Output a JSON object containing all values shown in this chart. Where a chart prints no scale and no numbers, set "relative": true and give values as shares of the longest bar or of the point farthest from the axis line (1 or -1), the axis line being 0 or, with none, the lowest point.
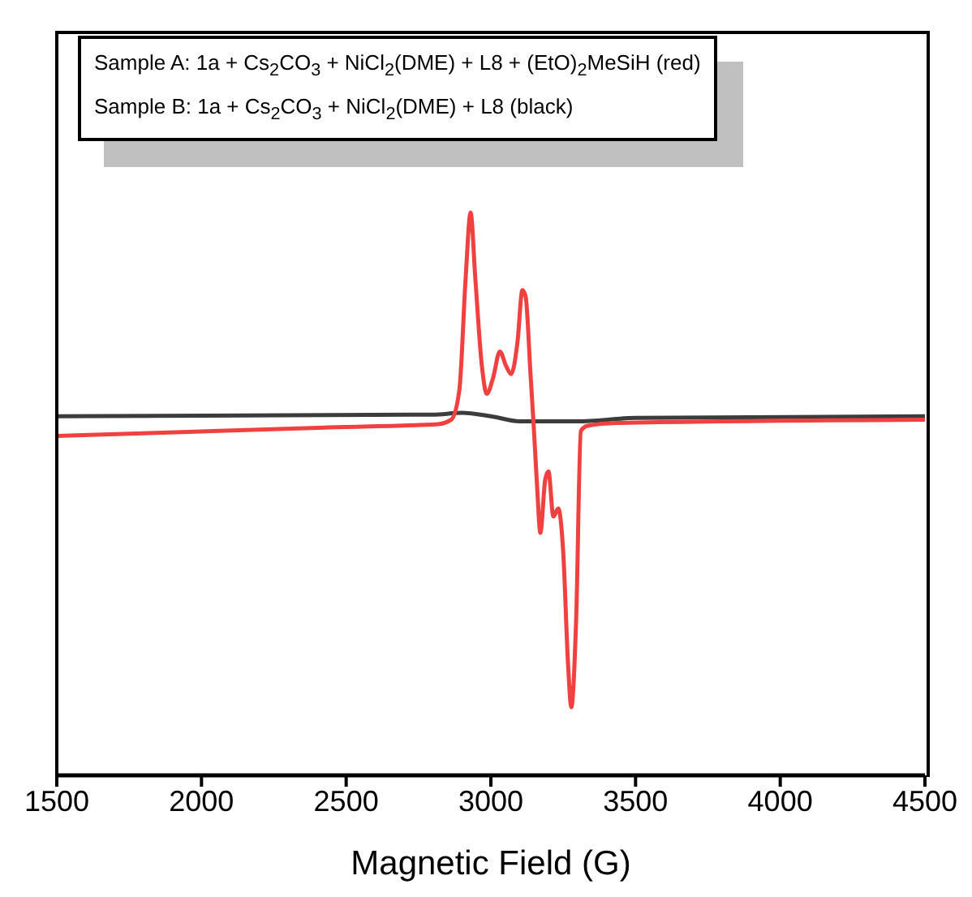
{
  "chart_data": {
    "type": "line",
    "xlabel": "Magnetic Field (G)",
    "relative": true,
    "xlim": [
      1500,
      4500
    ],
    "xticks": [
      1500,
      2000,
      2500,
      3000,
      3500,
      4000,
      4500
    ],
    "grid": false,
    "legend": false,
    "marker": "none",
    "line_style": "solid",
    "annotations": [
      "Sample A: 1a + Cs$_{2}$CO$_{3}$ + NiCl$_{2}$(DME) + L8 + (EtO)$_{2}$MeSiH (red)",
      "Sample B: 1a + Cs$_{2}$CO$_{3}$ + NiCl$_{2}$(DME) + L8 (black)"
    ],
    "series": [
      {
        "color": "#3c3c3c",
        "x": [
          1500,
          2800,
          2900,
          3000,
          3100,
          3300,
          3500,
          4500
        ],
        "values": [
          0.638,
          0.641,
          0.644,
          0.638,
          0.629,
          0.629,
          0.635,
          0.638
        ]
      },
      {
        "color": "#f04040",
        "x": [
          1500,
          1865,
          2425,
          2818,
          2863,
          2891,
          2913,
          2930,
          2946,
          2969,
          2986,
          3008,
          3031,
          3053,
          3070,
          3092,
          3109,
          3120,
          3137,
          3148,
          3160,
          3171,
          3188,
          3199,
          3216,
          3233,
          3250,
          3267,
          3278,
          3295,
          3311,
          3334,
          3435,
          4500
        ],
        "values": [
          0.603,
          0.609,
          0.618,
          0.624,
          0.632,
          0.684,
          0.885,
          1.0,
          0.885,
          0.727,
          0.678,
          0.707,
          0.753,
          0.727,
          0.713,
          0.77,
          0.862,
          0.851,
          0.713,
          0.621,
          0.511,
          0.431,
          0.526,
          0.54,
          0.46,
          0.474,
          0.397,
          0.195,
          0.121,
          0.282,
          0.612,
          0.621,
          0.626,
          0.632
        ]
      }
    ]
  }
}
